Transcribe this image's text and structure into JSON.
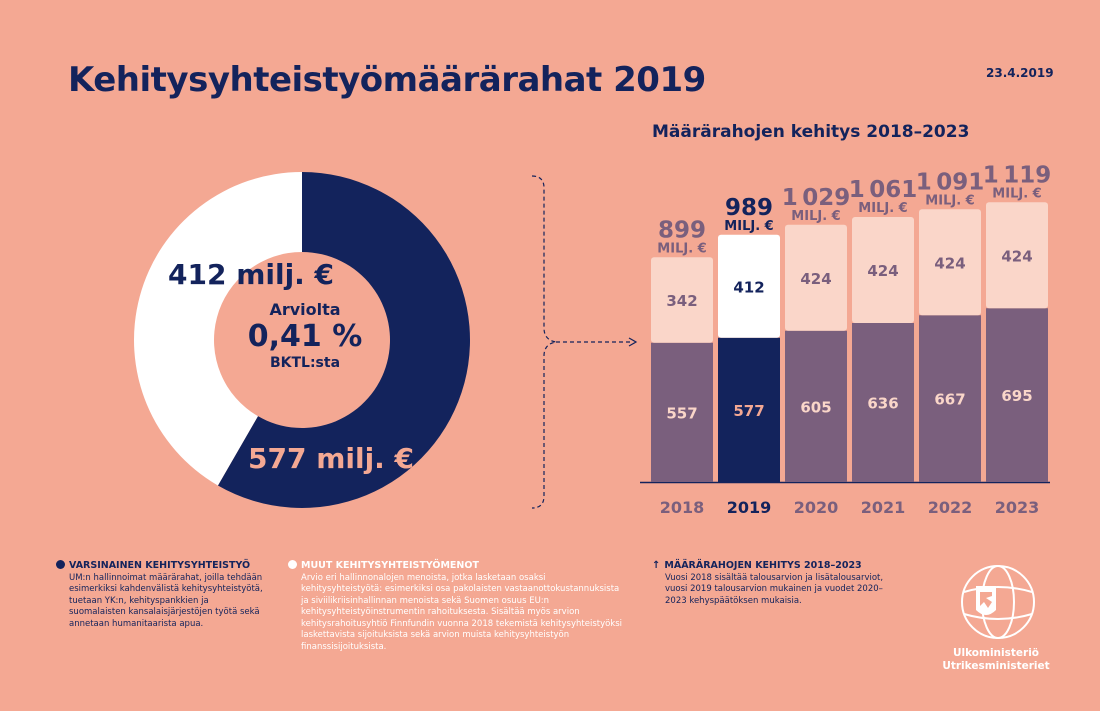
{
  "title": "Kehitysyhteistyömäärärahat 2019",
  "date": "23.4.2019",
  "donut": {
    "center_line1": "Arviolta",
    "center_line2": "0,41 %",
    "center_line3": "BKTL:sta",
    "muut_label": "412 milj. €",
    "varsinainen_label": "577 milj. €"
  },
  "bars_title": "Määrärahojen kehitys 2018–2023",
  "unit_label": "MILJ. €",
  "colors": {
    "background": "#f4a893",
    "navy": "#13235c",
    "purple": "#7a5f7d",
    "light": "#fad6c9",
    "white": "#ffffff",
    "total_text": "#7a5f7d"
  },
  "chart_data": [
    {
      "type": "pie",
      "title": "Kehitysyhteistyömäärärahat 2019",
      "categories": [
        "Varsinainen kehitysyhteistyö",
        "Muut kehitysyhteistyömenot"
      ],
      "values": [
        577,
        412
      ],
      "unit": "milj. €"
    },
    {
      "type": "bar",
      "stacked": true,
      "title": "Määrärahojen kehitys 2018–2023",
      "categories": [
        "2018",
        "2019",
        "2020",
        "2021",
        "2022",
        "2023"
      ],
      "series": [
        {
          "name": "Varsinainen kehitysyhteistyö",
          "values": [
            557,
            577,
            605,
            636,
            667,
            695
          ]
        },
        {
          "name": "Muut kehitysyhteistyömenot",
          "values": [
            342,
            412,
            424,
            424,
            424,
            424
          ]
        }
      ],
      "totals": [
        899,
        989,
        1029,
        1061,
        1091,
        1119
      ],
      "highlight": "2019",
      "unit": "milj. €"
    }
  ],
  "legend": {
    "varsinainen": {
      "head": "VARSINAINEN KEHITYSYHTEISTYÖ",
      "body": "UM:n hallinnoimat määrärahat, joilla tehdään esimerkiksi kahdenvälistä kehitysyhteistyötä, tuetaan YK:n, kehityspankkien ja suomalaisten kansalaisjärjestöjen työtä sekä annetaan humanitaarista apua."
    },
    "muut": {
      "head": "MUUT KEHITYSYHTEISTYÖMENOT",
      "body": "Arvio eri hallinnonalojen menoista, jotka lasketaan osaksi kehitysyhteistyötä: esimerkiksi osa pakolaisten vastaanottokustannuksista ja siviilikriisinhallinnan menoista sekä Suomen osuus EU:n kehitysyhteistyöinstrumentin rahoituksesta. Sisältää myös arvion kehitysrahoitusyhtiö Finnfundin vuonna 2018 tekemistä kehitysyhteistyöksi laskettavista sijoituksista sekä arvion muista kehitysyhteistyön finanssisijoituksista."
    },
    "kehitys": {
      "head": "MÄÄRÄRAHOJEN KEHITYS 2018–2023",
      "body": "Vuosi 2018 sisältää talousarvion ja lisätalousarviot, vuosi 2019 talousarvion mukainen ja vuodet 2020–2023 kehyspäätöksen mukaisia."
    }
  },
  "logo": {
    "line1": "Ulkoministeriö",
    "line2": "Utrikesministeriet"
  }
}
